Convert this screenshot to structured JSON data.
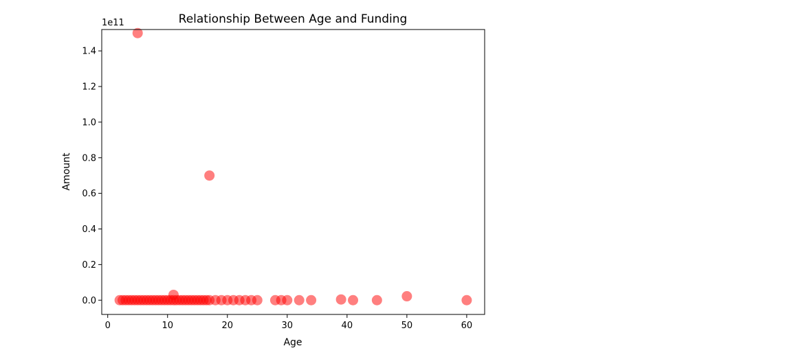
{
  "chart_data": {
    "type": "scatter",
    "title": "Relationship Between Age and Funding",
    "xlabel": "Age",
    "ylabel": "Amount",
    "y_offset_label": "1e11",
    "xlim": [
      -1,
      63
    ],
    "ylim": [
      -0.08,
      1.52
    ],
    "y_scale_factor": 100000000000.0,
    "xticks": [
      0,
      10,
      20,
      30,
      40,
      50,
      60
    ],
    "yticks": [
      0.0,
      0.2,
      0.4,
      0.6,
      0.8,
      1.0,
      1.2,
      1.4
    ],
    "xtick_labels": [
      "0",
      "10",
      "20",
      "30",
      "40",
      "50",
      "60"
    ],
    "ytick_labels": [
      "0.0",
      "0.2",
      "0.4",
      "0.6",
      "0.8",
      "1.0",
      "1.2",
      "1.4"
    ],
    "grid": false,
    "marker_color": "#ff0000",
    "marker_alpha": 0.5,
    "points": [
      {
        "x": 5,
        "y": 1.5
      },
      {
        "x": 17,
        "y": 0.7
      },
      {
        "x": 11,
        "y": 0.03
      },
      {
        "x": 50,
        "y": 0.022
      },
      {
        "x": 39,
        "y": 0.004
      },
      {
        "x": 2,
        "y": 0.0
      },
      {
        "x": 2.5,
        "y": 0.0
      },
      {
        "x": 3,
        "y": 0.0
      },
      {
        "x": 3.5,
        "y": 0.0
      },
      {
        "x": 4,
        "y": 0.0
      },
      {
        "x": 4.5,
        "y": 0.0
      },
      {
        "x": 5,
        "y": 0.0
      },
      {
        "x": 5.5,
        "y": 0.0
      },
      {
        "x": 6,
        "y": 0.0
      },
      {
        "x": 6.5,
        "y": 0.0
      },
      {
        "x": 7,
        "y": 0.0
      },
      {
        "x": 7.5,
        "y": 0.0
      },
      {
        "x": 8,
        "y": 0.0
      },
      {
        "x": 8.5,
        "y": 0.0
      },
      {
        "x": 9,
        "y": 0.0
      },
      {
        "x": 9.5,
        "y": 0.0
      },
      {
        "x": 10,
        "y": 0.0
      },
      {
        "x": 10.5,
        "y": 0.0
      },
      {
        "x": 11,
        "y": 0.0
      },
      {
        "x": 11.5,
        "y": 0.0
      },
      {
        "x": 12,
        "y": 0.0
      },
      {
        "x": 12.5,
        "y": 0.0
      },
      {
        "x": 13,
        "y": 0.0
      },
      {
        "x": 13.5,
        "y": 0.0
      },
      {
        "x": 14,
        "y": 0.0
      },
      {
        "x": 14.5,
        "y": 0.0
      },
      {
        "x": 15,
        "y": 0.0
      },
      {
        "x": 15.5,
        "y": 0.0
      },
      {
        "x": 16,
        "y": 0.0
      },
      {
        "x": 16.5,
        "y": 0.0
      },
      {
        "x": 17,
        "y": 0.0
      },
      {
        "x": 18,
        "y": 0.0
      },
      {
        "x": 19,
        "y": 0.0
      },
      {
        "x": 20,
        "y": 0.0
      },
      {
        "x": 21,
        "y": 0.0
      },
      {
        "x": 22,
        "y": 0.0
      },
      {
        "x": 23,
        "y": 0.0
      },
      {
        "x": 24,
        "y": 0.0
      },
      {
        "x": 25,
        "y": 0.0
      },
      {
        "x": 28,
        "y": 0.0
      },
      {
        "x": 29,
        "y": 0.0
      },
      {
        "x": 30,
        "y": 0.0
      },
      {
        "x": 32,
        "y": 0.0
      },
      {
        "x": 34,
        "y": 0.0
      },
      {
        "x": 41,
        "y": 0.0
      },
      {
        "x": 45,
        "y": 0.0
      },
      {
        "x": 60,
        "y": 0.0
      }
    ]
  }
}
